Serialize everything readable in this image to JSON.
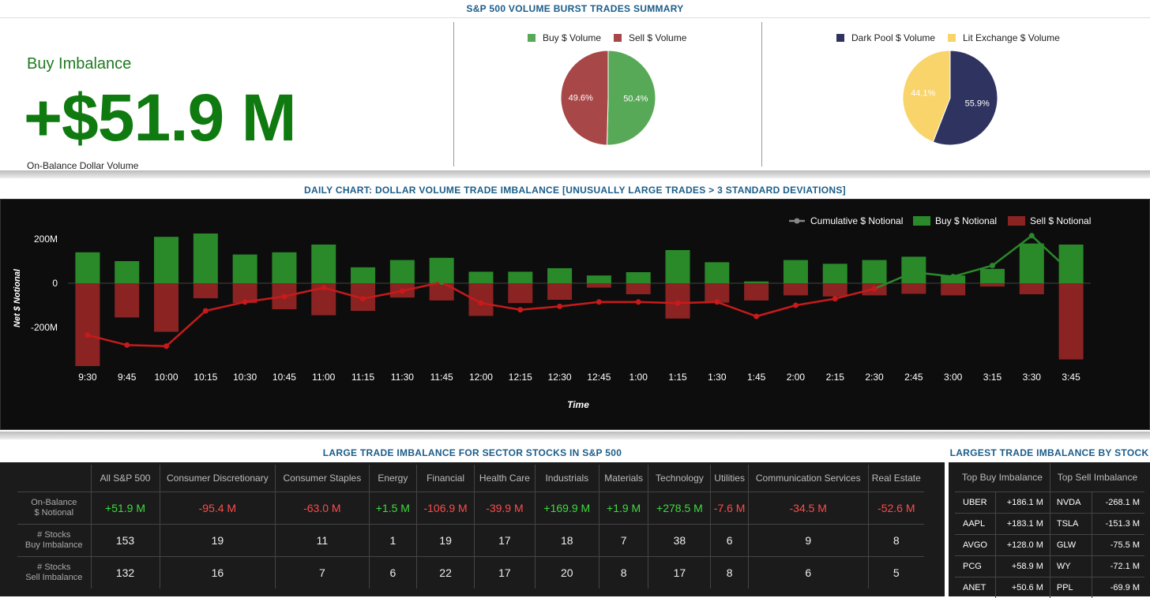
{
  "header": {
    "title": "S&P 500 VOLUME BURST TRADES SUMMARY"
  },
  "summary": {
    "label": "Buy Imbalance",
    "value": "+$51.9 M",
    "sublabel": "On-Balance Dollar Volume"
  },
  "pie_buy_sell": {
    "legend": [
      "Buy $ Volume",
      "Sell $ Volume"
    ],
    "values": [
      50.4,
      49.6
    ],
    "labels": [
      "50.4%",
      "49.6%"
    ],
    "colors": [
      "#57a957",
      "#a84747"
    ]
  },
  "pie_dark_lit": {
    "legend": [
      "Dark Pool $ Volume",
      "Lit Exchange $ Volume"
    ],
    "values": [
      55.9,
      44.1
    ],
    "labels": [
      "55.9%",
      "44.1%"
    ],
    "colors": [
      "#2f3360",
      "#f9d46b"
    ]
  },
  "daily": {
    "title": "DAILY CHART: DOLLAR VOLUME TRADE IMBALANCE [UNUSUALLY LARGE TRADES > 3 STANDARD DEVIATIONS]"
  },
  "chart_data": {
    "type": "bar",
    "title": "DAILY CHART: DOLLAR VOLUME TRADE IMBALANCE [UNUSUALLY LARGE TRADES > 3 STANDARD DEVIATIONS]",
    "xlabel": "Time",
    "ylabel": "Net $ Notional",
    "ylim": [
      -380,
      240
    ],
    "yticks": [
      200,
      0,
      -200
    ],
    "ytick_labels": [
      "200M",
      "0",
      "-200M"
    ],
    "legend_position": "top-right",
    "categories": [
      "9:30",
      "9:45",
      "10:00",
      "10:15",
      "10:30",
      "10:45",
      "11:00",
      "11:15",
      "11:30",
      "11:45",
      "12:00",
      "12:15",
      "12:30",
      "12:45",
      "1:00",
      "1:15",
      "1:30",
      "1:45",
      "2:00",
      "2:15",
      "2:30",
      "2:45",
      "3:00",
      "3:15",
      "3:30",
      "3:45"
    ],
    "series": [
      {
        "name": "Buy $ Notional",
        "type": "bar",
        "color": "#2a8a2a",
        "values": [
          140,
          100,
          210,
          225,
          130,
          140,
          175,
          72,
          105,
          115,
          52,
          52,
          68,
          35,
          50,
          150,
          95,
          8,
          105,
          88,
          105,
          120,
          35,
          65,
          180,
          175
        ]
      },
      {
        "name": "Sell $ Notional",
        "type": "bar",
        "color": "#8b2323",
        "values": [
          -375,
          -155,
          -220,
          -68,
          -90,
          -118,
          -145,
          -125,
          -65,
          -78,
          -148,
          -90,
          -75,
          -20,
          -50,
          -160,
          -88,
          -78,
          -55,
          -60,
          -55,
          -48,
          -55,
          -15,
          -50,
          -345
        ]
      },
      {
        "name": "Cumulative $ Notional",
        "type": "line",
        "color_positive": "#2a8a2a",
        "color_negative": "#c81a1a",
        "values": [
          -235,
          -280,
          -285,
          -125,
          -85,
          -60,
          -20,
          -70,
          -35,
          5,
          -90,
          -120,
          -105,
          -85,
          -85,
          -90,
          -85,
          -150,
          -100,
          -70,
          -25,
          50,
          30,
          80,
          215,
          50
        ]
      }
    ]
  },
  "sector_table": {
    "title": "LARGE TRADE IMBALANCE FOR SECTOR STOCKS IN S&P 500",
    "columns": [
      "All S&P 500",
      "Consumer Discretionary",
      "Consumer Staples",
      "Energy",
      "Financial",
      "Health Care",
      "Industrials",
      "Materials",
      "Technology",
      "Utilities",
      "Communication Services",
      "Real Estate"
    ],
    "rows": [
      {
        "label1": "On-Balance",
        "label2": "$ Notional",
        "values": [
          "+51.9 M",
          "-95.4 M",
          "-63.0 M",
          "+1.5 M",
          "-106.9 M",
          "-39.9 M",
          "+169.9 M",
          "+1.9 M",
          "+278.5 M",
          "-7.6 M",
          "-34.5 M",
          "-52.6 M"
        ]
      },
      {
        "label1": "# Stocks",
        "label2": "Buy Imbalance",
        "values": [
          "153",
          "19",
          "11",
          "1",
          "19",
          "17",
          "18",
          "7",
          "38",
          "6",
          "9",
          "8"
        ]
      },
      {
        "label1": "# Stocks",
        "label2": "Sell Imbalance",
        "values": [
          "132",
          "16",
          "7",
          "6",
          "22",
          "17",
          "20",
          "8",
          "17",
          "8",
          "6",
          "5"
        ]
      }
    ]
  },
  "stock_table": {
    "title": "LARGEST TRADE IMBALANCE BY STOCK",
    "headers": [
      "Top Buy Imbalance",
      "Top Sell Imbalance"
    ],
    "rows": [
      {
        "buy": "UBER",
        "buy_val": "+186.1 M",
        "sell": "NVDA",
        "sell_val": "-268.1 M"
      },
      {
        "buy": "AAPL",
        "buy_val": "+183.1 M",
        "sell": "TSLA",
        "sell_val": "-151.3 M"
      },
      {
        "buy": "AVGO",
        "buy_val": "+128.0 M",
        "sell": "GLW",
        "sell_val": "-75.5 M"
      },
      {
        "buy": "PCG",
        "buy_val": "+58.9 M",
        "sell": "WY",
        "sell_val": "-72.1 M"
      },
      {
        "buy": "ANET",
        "buy_val": "+50.6 M",
        "sell": "PPL",
        "sell_val": "-69.9 M"
      }
    ]
  }
}
